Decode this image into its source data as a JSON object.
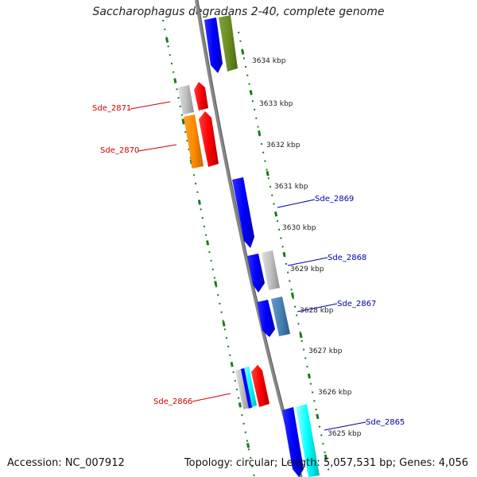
{
  "title": "Saccharophagus degradans 2-40, complete genome",
  "footer": {
    "accession": "Accession: NC_007912",
    "info": "Topology: circular; Length: 5,057,531 bp; Genes: 4,056"
  },
  "kbp_ticks": [
    "3634 kbp",
    "3633 kbp",
    "3632 kbp",
    "3631 kbp",
    "3630 kbp",
    "3629 kbp",
    "3628 kbp",
    "3627 kbp",
    "3626 kbp",
    "3625 kbp"
  ],
  "gene_labels": {
    "sde_2871": "Sde_2871",
    "sde_2870": "Sde_2870",
    "sde_2869": "Sde_2869",
    "sde_2868": "Sde_2868",
    "sde_2867": "Sde_2867",
    "sde_2866": "Sde_2866",
    "sde_2865": "Sde_2865"
  },
  "colors": {
    "reverse_label": "#cc0000",
    "forward_label": "#0000aa",
    "backbone": "#808080",
    "ruler": "#1a7a1a",
    "blue": "#0000ff",
    "red": "#ff0000",
    "orange": "#ff8c00",
    "grey": "#c0c0c0",
    "olive": "#6b8e23",
    "steelblue": "#4682b4",
    "cyan": "#00ffff"
  }
}
